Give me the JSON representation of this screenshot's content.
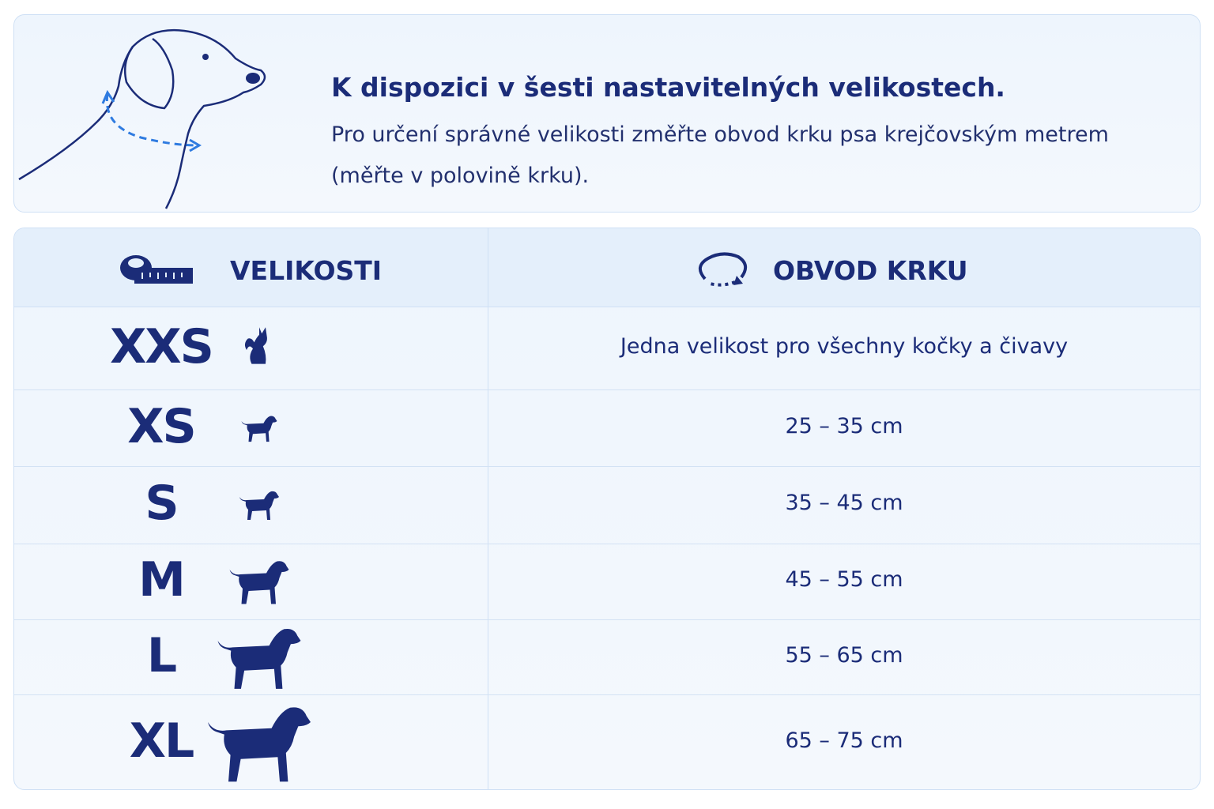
{
  "header": {
    "title": "K dispozici v šesti nastavitelných velikostech.",
    "description": "Pro určení správné velikosti změřte obvod krku psa krejčovským metrem (měřte v polovině krku)."
  },
  "table": {
    "columns": [
      "VELIKOSTI",
      "OBVOD KRKU"
    ],
    "rows": [
      [
        "XXS",
        "Jedna velikost pro všechny kočky a čivavy"
      ],
      [
        "XS",
        "25 – 35 cm"
      ],
      [
        "S",
        "35 – 45 cm"
      ],
      [
        "M",
        "45 – 55 cm"
      ],
      [
        "L",
        "55 – 65 cm"
      ],
      [
        "XL",
        "65 – 75 cm"
      ]
    ]
  }
}
